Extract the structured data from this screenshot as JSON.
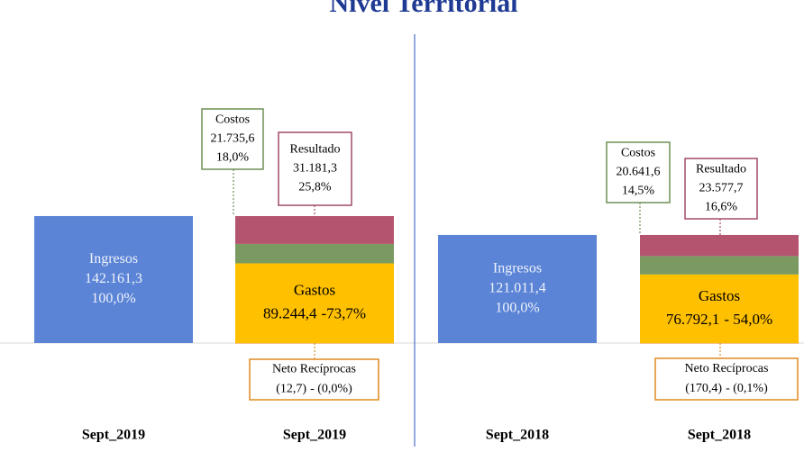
{
  "chart_data": {
    "type": "stacked_bar",
    "title": "Nivel Territorial",
    "ylim": [
      0,
      150000
    ],
    "panels": [
      {
        "categories": [
          "Sept_2019",
          "Sept_2019"
        ],
        "series": [
          {
            "name": "Ingresos",
            "color": "#5b84d6",
            "values": [
              142161.3,
              null
            ],
            "value_labels": [
              "142.161,3",
              null
            ],
            "share_labels": [
              "100,0%",
              null
            ]
          },
          {
            "name": "Gastos",
            "color": "#ffc000",
            "values": [
              null,
              89244.4
            ],
            "value_labels": [
              null,
              "89.244,4"
            ],
            "share_labels": [
              null,
              "-73,7%"
            ]
          },
          {
            "name": "Costos",
            "color": "#7a9a61",
            "values": [
              null,
              21735.6
            ],
            "value_labels": [
              null,
              "21.735,6"
            ],
            "share_labels": [
              null,
              "18,0%"
            ]
          },
          {
            "name": "Resultado",
            "color": "#b5546e",
            "values": [
              null,
              31181.3
            ],
            "value_labels": [
              null,
              "31.181,3"
            ],
            "share_labels": [
              null,
              "25,8%"
            ]
          },
          {
            "name": "Neto Recíprocas",
            "color": "#e08a1e",
            "values": [
              null,
              -12.7
            ],
            "value_labels": [
              null,
              "(12,7)"
            ],
            "share_labels": [
              null,
              "- (0,0%)"
            ]
          }
        ]
      },
      {
        "categories": [
          "Sept_2018",
          "Sept_2018"
        ],
        "series": [
          {
            "name": "Ingresos",
            "color": "#5b84d6",
            "values": [
              121011.4,
              null
            ],
            "value_labels": [
              "121.011,4",
              null
            ],
            "share_labels": [
              "100,0%",
              null
            ]
          },
          {
            "name": "Gastos",
            "color": "#ffc000",
            "values": [
              null,
              76792.1
            ],
            "value_labels": [
              null,
              "76.792,1"
            ],
            "share_labels": [
              null,
              "- 54,0%"
            ]
          },
          {
            "name": "Costos",
            "color": "#7a9a61",
            "values": [
              null,
              20641.6
            ],
            "value_labels": [
              null,
              "20.641,6"
            ],
            "share_labels": [
              null,
              "14,5%"
            ]
          },
          {
            "name": "Resultado",
            "color": "#b5546e",
            "values": [
              null,
              23577.7
            ],
            "value_labels": [
              null,
              "23.577,7"
            ],
            "share_labels": [
              null,
              "16,6%"
            ]
          },
          {
            "name": "Neto Recíprocas",
            "color": "#e08a1e",
            "values": [
              null,
              -170.4
            ],
            "value_labels": [
              null,
              "(170,4)"
            ],
            "share_labels": [
              null,
              "- (0,1%)"
            ]
          }
        ]
      }
    ]
  }
}
